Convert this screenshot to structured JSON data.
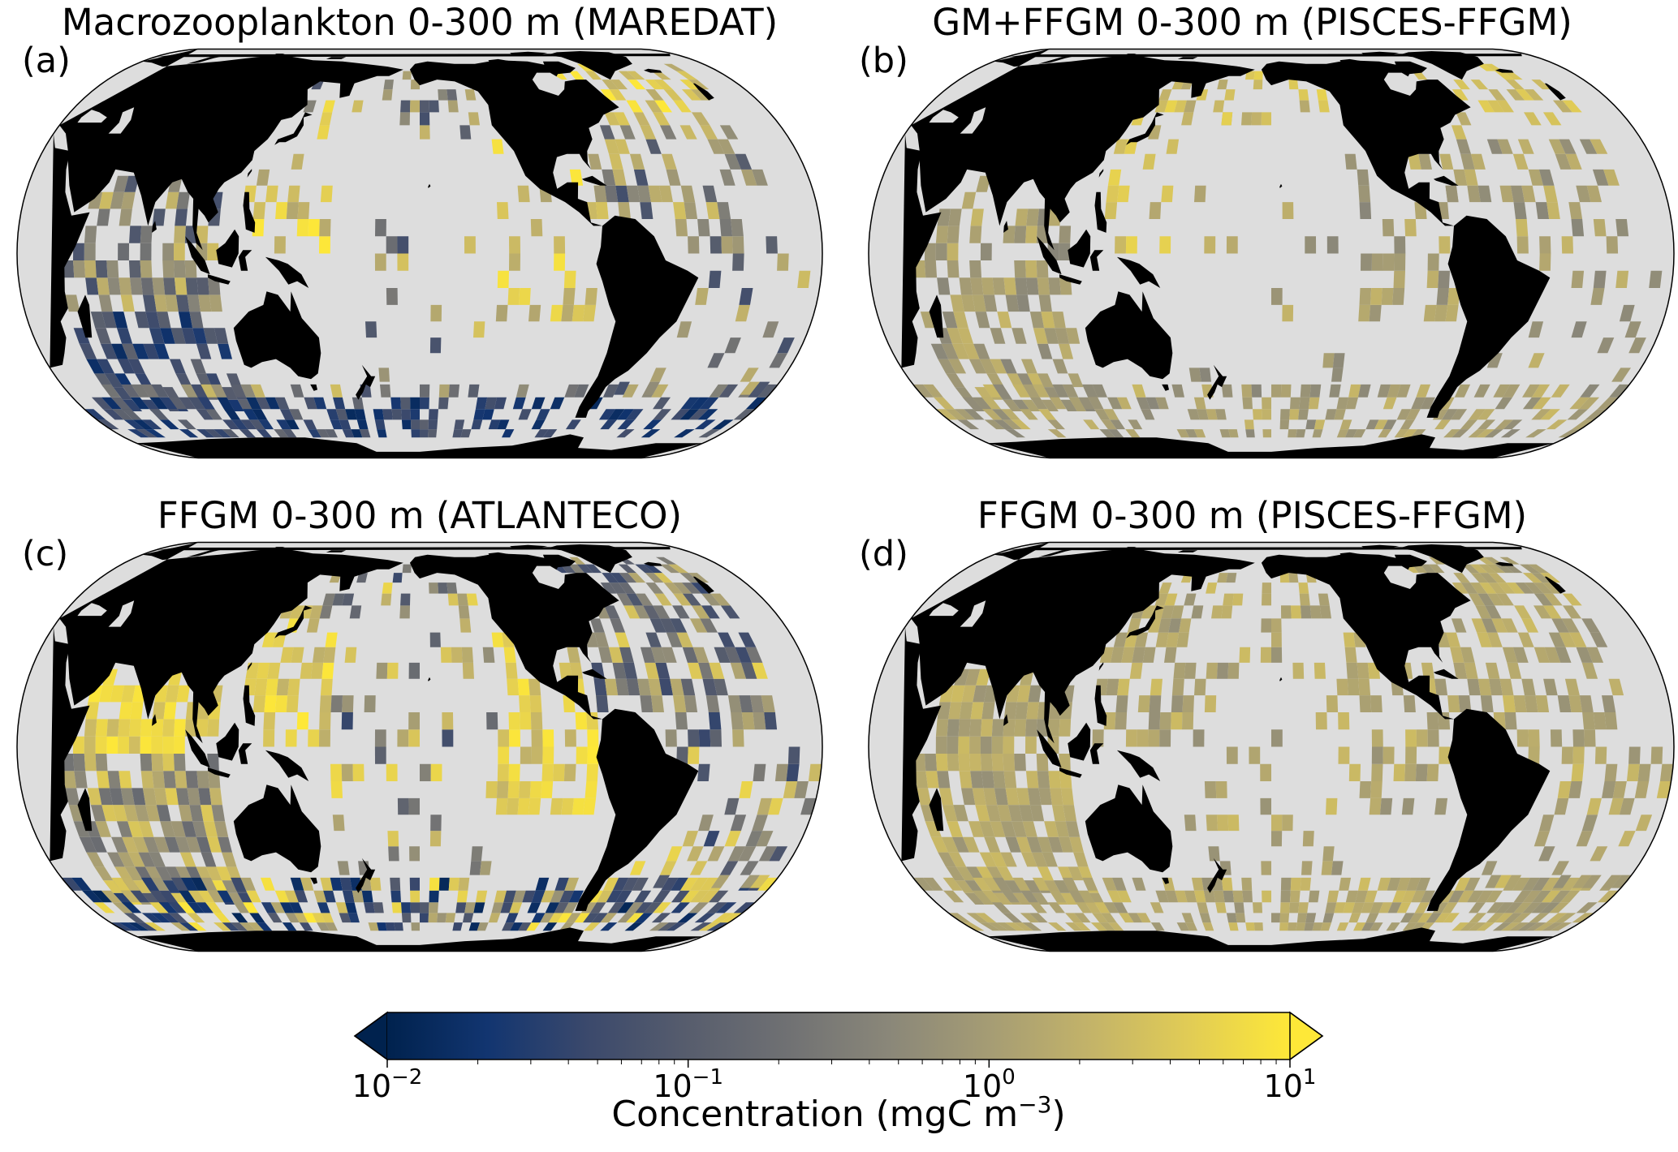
{
  "figure": {
    "panels": [
      {
        "letter": "(a)",
        "title": "Macrozooplankton 0-300 m (MAREDAT)",
        "pattern": "maredat",
        "seed": 11
      },
      {
        "letter": "(b)",
        "title": "GM+FFGM 0-300 m (PISCES-FFGM)",
        "pattern": "pisces_a",
        "seed": 29
      },
      {
        "letter": "(c)",
        "title": "FFGM 0-300 m (ATLANTECO)",
        "pattern": "atlanteco",
        "seed": 47
      },
      {
        "letter": "(d)",
        "title": "FFGM 0-300 m (PISCES-FFGM)",
        "pattern": "pisces_b",
        "seed": 83
      }
    ],
    "map": {
      "projection": "Robinson (Pacific-centred)",
      "land_color": "#000000",
      "no_data_color": "#dddddd"
    },
    "colorbar": {
      "label_text": "Concentration (mgC m",
      "label_exponent": "−3",
      "label_close": ")",
      "scale": "log",
      "vmin": 0.01,
      "vmax": 10,
      "extend": "both",
      "ticks": [
        {
          "value": 0.01,
          "base": "10",
          "exp": "−2"
        },
        {
          "value": 0.1,
          "base": "10",
          "exp": "−1"
        },
        {
          "value": 1,
          "base": "10",
          "exp": "0"
        },
        {
          "value": 10,
          "base": "10",
          "exp": "1"
        }
      ],
      "colormap": [
        "#00224e",
        "#123570",
        "#3b496c",
        "#575d6d",
        "#707173",
        "#8a8779",
        "#a59c74",
        "#c3b369",
        "#e1cc55",
        "#fee838"
      ]
    }
  }
}
